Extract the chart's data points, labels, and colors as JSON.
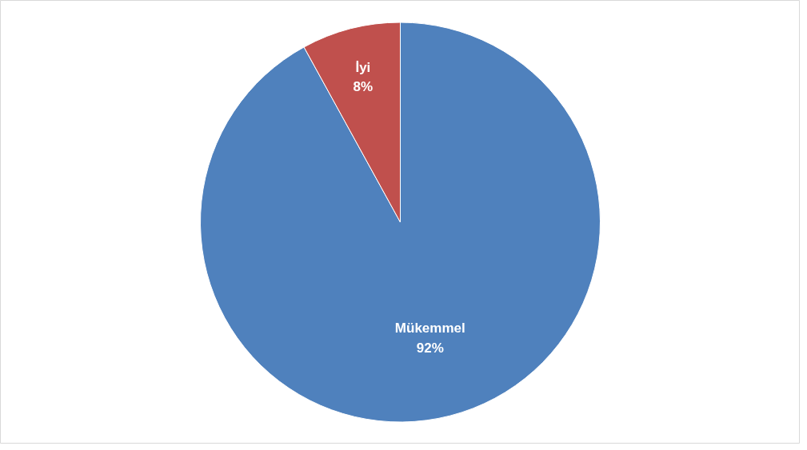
{
  "chart_data": {
    "type": "pie",
    "categories": [
      "Mükemmel",
      "İyi"
    ],
    "values": [
      92,
      8
    ],
    "colors": [
      "#4f81bd",
      "#c0504d"
    ],
    "value_labels": [
      "92%",
      "8%"
    ],
    "legend": false
  }
}
